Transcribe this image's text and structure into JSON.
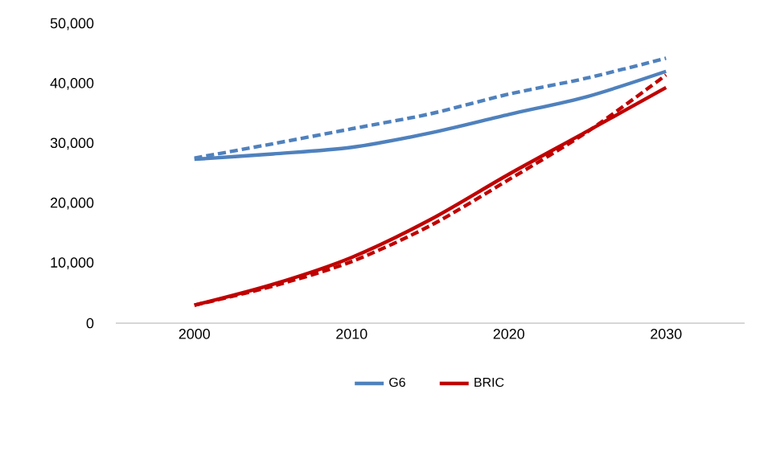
{
  "chart_data": {
    "type": "line",
    "xlim": [
      1995,
      2035
    ],
    "xticks": [
      2000,
      2010,
      2020,
      2030
    ],
    "ylim": [
      0,
      50000
    ],
    "yticks": [
      {
        "value": 0,
        "label": "0"
      },
      {
        "value": 10000,
        "label": "10,000"
      },
      {
        "value": 20000,
        "label": "20,000"
      },
      {
        "value": 30000,
        "label": "30,000"
      },
      {
        "value": 40000,
        "label": "40,000"
      },
      {
        "value": 50000,
        "label": "50,000"
      }
    ],
    "grid": false,
    "legend": "bottom",
    "marker": "none",
    "series": [
      {
        "name": "G6",
        "color": "#4f81bd",
        "line_style": "solid",
        "x": [
          2000,
          2005,
          2010,
          2015,
          2020,
          2025,
          2030
        ],
        "values": [
          27400,
          28300,
          29400,
          31800,
          34900,
          37900,
          42100
        ]
      },
      {
        "name": "BRIC",
        "color": "#c00000",
        "line_style": "solid",
        "x": [
          2000,
          2005,
          2010,
          2015,
          2020,
          2025,
          2030
        ],
        "values": [
          3000,
          6500,
          11000,
          17300,
          24900,
          32100,
          39400
        ]
      },
      {
        "color": "#4f81bd",
        "line_style": "dashed",
        "x": [
          2000,
          2005,
          2010,
          2015,
          2020,
          2025,
          2030
        ],
        "values": [
          27600,
          30000,
          32500,
          35000,
          38300,
          41000,
          44300
        ]
      },
      {
        "color": "#c00000",
        "line_style": "dashed",
        "x": [
          2000,
          2005,
          2010,
          2015,
          2020,
          2025,
          2030
        ],
        "values": [
          3000,
          6200,
          10300,
          16300,
          24000,
          32000,
          41500
        ]
      }
    ]
  }
}
